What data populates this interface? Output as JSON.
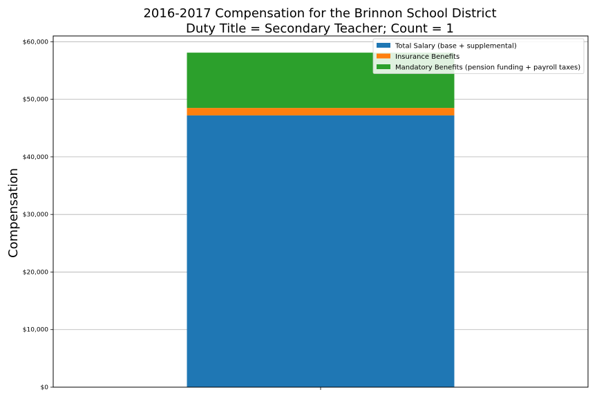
{
  "chart_data": {
    "type": "bar",
    "stacked": true,
    "title": "2016-2017 Compensation for the Brinnon School District",
    "subtitle": "Duty Title = Secondary Teacher; Count = 1",
    "xlabel": "",
    "ylabel": "Compensation",
    "ylim": [
      0,
      61000
    ],
    "yticks": [
      0,
      10000,
      20000,
      30000,
      40000,
      50000,
      60000
    ],
    "ytick_labels": [
      "$0",
      "$10,000",
      "$20,000",
      "$30,000",
      "$40,000",
      "$50,000",
      "$60,000"
    ],
    "grid": true,
    "legend_position": "top-right",
    "categories": [
      ""
    ],
    "series": [
      {
        "name": "Total Salary (base + supplemental)",
        "values": [
          47200
        ],
        "color": "#1f77b4"
      },
      {
        "name": "Insurance Benefits",
        "values": [
          1300
        ],
        "color": "#ff7f0e"
      },
      {
        "name": "Mandatory Benefits (pension funding + payroll taxes)",
        "values": [
          9600
        ],
        "color": "#2ca02c"
      }
    ]
  }
}
